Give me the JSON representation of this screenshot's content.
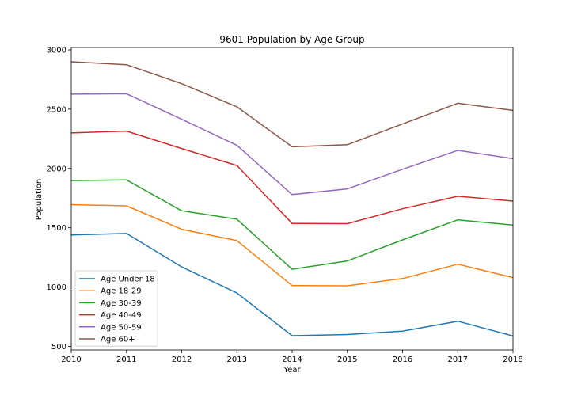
{
  "chart_data": {
    "type": "line",
    "title": "9601 Population by Age Group",
    "xlabel": "Year",
    "ylabel": "Population",
    "x": [
      2010,
      2011,
      2012,
      2013,
      2014,
      2015,
      2016,
      2017,
      2018
    ],
    "xlim": [
      2010,
      2018
    ],
    "ylim": [
      470,
      3020
    ],
    "yticks": [
      500,
      1000,
      1500,
      2000,
      2500,
      3000
    ],
    "grid": false,
    "legend_position": "lower-left",
    "series": [
      {
        "name": "Age Under 18",
        "color": "#1f77b4",
        "values": [
          1440,
          1452,
          1170,
          950,
          590,
          600,
          628,
          712,
          588
        ]
      },
      {
        "name": "Age 18-29",
        "color": "#ff7f0e",
        "values": [
          1695,
          1685,
          1487,
          1392,
          1013,
          1011,
          1072,
          1193,
          1080
        ]
      },
      {
        "name": "Age 30-39",
        "color": "#2ca02c",
        "values": [
          1898,
          1903,
          1643,
          1572,
          1150,
          1220,
          1398,
          1567,
          1523
        ]
      },
      {
        "name": "Age 40-49",
        "color": "#d62728",
        "values": [
          2300,
          2315,
          2168,
          2025,
          1537,
          1535,
          1660,
          1766,
          1725
        ]
      },
      {
        "name": "Age 50-59",
        "color": "#9467bd",
        "values": [
          2627,
          2630,
          2415,
          2195,
          1780,
          1828,
          1993,
          2153,
          2083
        ]
      },
      {
        "name": "Age 60+",
        "color": "#8c564b",
        "values": [
          2900,
          2875,
          2715,
          2520,
          2183,
          2200,
          2375,
          2550,
          2490
        ]
      }
    ]
  }
}
